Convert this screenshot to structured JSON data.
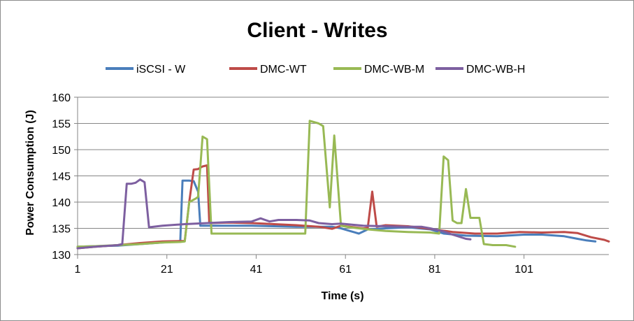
{
  "chart_data": {
    "type": "line",
    "title": "Client - Writes",
    "xlabel": "Time (s)",
    "ylabel": "Power Consumption (J)",
    "xlim": [
      1,
      120
    ],
    "ylim": [
      130,
      160
    ],
    "x_ticks": [
      1,
      21,
      41,
      61,
      81,
      101
    ],
    "y_ticks": [
      130,
      135,
      140,
      145,
      150,
      155,
      160
    ],
    "grid": "horizontal",
    "legend": "top",
    "series": [
      {
        "name": "iSCSI - W",
        "color": "#4a7ebb",
        "points": [
          [
            1,
            131.5
          ],
          [
            5,
            131.6
          ],
          [
            10,
            131.7
          ],
          [
            15,
            132.0
          ],
          [
            20,
            132.3
          ],
          [
            23,
            132.5
          ],
          [
            24,
            132.5
          ],
          [
            24.5,
            144.1
          ],
          [
            26,
            144.1
          ],
          [
            27,
            144.0
          ],
          [
            28,
            142.0
          ],
          [
            28.5,
            135.5
          ],
          [
            30,
            135.5
          ],
          [
            40,
            135.5
          ],
          [
            50,
            135.3
          ],
          [
            55,
            135.3
          ],
          [
            58,
            135.3
          ],
          [
            60,
            135.0
          ],
          [
            62,
            134.5
          ],
          [
            64,
            134.0
          ],
          [
            66,
            134.8
          ],
          [
            70,
            135.0
          ],
          [
            75,
            135.2
          ],
          [
            80,
            134.8
          ],
          [
            83,
            134.0
          ],
          [
            88,
            133.6
          ],
          [
            95,
            133.5
          ],
          [
            101,
            133.8
          ],
          [
            105,
            133.8
          ],
          [
            110,
            133.5
          ],
          [
            113,
            133.0
          ],
          [
            115,
            132.7
          ],
          [
            117,
            132.5
          ]
        ]
      },
      {
        "name": "DMC-WT",
        "color": "#be4b48",
        "points": [
          [
            1,
            131.2
          ],
          [
            5,
            131.5
          ],
          [
            10,
            131.8
          ],
          [
            15,
            132.2
          ],
          [
            20,
            132.5
          ],
          [
            25,
            132.6
          ],
          [
            26,
            140.0
          ],
          [
            27,
            146.2
          ],
          [
            28,
            146.3
          ],
          [
            29,
            146.8
          ],
          [
            30,
            147.0
          ],
          [
            30.5,
            136.0
          ],
          [
            35,
            136.1
          ],
          [
            40,
            136.0
          ],
          [
            45,
            135.8
          ],
          [
            50,
            135.6
          ],
          [
            55,
            135.3
          ],
          [
            58,
            134.9
          ],
          [
            60,
            135.5
          ],
          [
            63,
            135.2
          ],
          [
            65,
            135.0
          ],
          [
            66,
            135.1
          ],
          [
            67,
            142.0
          ],
          [
            68,
            135.3
          ],
          [
            70,
            135.6
          ],
          [
            75,
            135.4
          ],
          [
            80,
            134.9
          ],
          [
            85,
            134.3
          ],
          [
            90,
            134.0
          ],
          [
            95,
            134.0
          ],
          [
            100,
            134.3
          ],
          [
            105,
            134.2
          ],
          [
            110,
            134.3
          ],
          [
            113,
            134.1
          ],
          [
            116,
            133.3
          ],
          [
            119,
            132.8
          ],
          [
            120,
            132.5
          ]
        ]
      },
      {
        "name": "DMC-WB-M",
        "color": "#98b954",
        "points": [
          [
            1,
            131.5
          ],
          [
            5,
            131.6
          ],
          [
            10,
            131.8
          ],
          [
            15,
            132.0
          ],
          [
            20,
            132.3
          ],
          [
            24,
            132.4
          ],
          [
            25,
            132.5
          ],
          [
            26,
            140.0
          ],
          [
            27.5,
            140.7
          ],
          [
            28,
            141.0
          ],
          [
            29,
            152.5
          ],
          [
            30,
            152.0
          ],
          [
            31,
            134.0
          ],
          [
            35,
            134.0
          ],
          [
            40,
            134.0
          ],
          [
            45,
            134.0
          ],
          [
            50,
            134.0
          ],
          [
            52,
            134.0
          ],
          [
            53,
            155.5
          ],
          [
            55,
            155.0
          ],
          [
            56,
            154.5
          ],
          [
            57.5,
            139.0
          ],
          [
            58.5,
            152.7
          ],
          [
            60,
            135.5
          ],
          [
            62,
            135.2
          ],
          [
            64,
            135.0
          ],
          [
            66,
            134.8
          ],
          [
            70,
            134.5
          ],
          [
            75,
            134.3
          ],
          [
            80,
            134.2
          ],
          [
            82,
            134.0
          ],
          [
            83,
            148.7
          ],
          [
            84,
            148.0
          ],
          [
            85,
            136.5
          ],
          [
            86,
            136.0
          ],
          [
            87,
            136.0
          ],
          [
            88,
            142.5
          ],
          [
            89,
            137.0
          ],
          [
            91,
            137.0
          ],
          [
            92,
            132.0
          ],
          [
            94,
            131.8
          ],
          [
            97,
            131.8
          ],
          [
            99,
            131.5
          ]
        ]
      },
      {
        "name": "DMC-WB-H",
        "color": "#7d5fa0",
        "points": [
          [
            1,
            131.2
          ],
          [
            5,
            131.5
          ],
          [
            10,
            131.8
          ],
          [
            11,
            132.0
          ],
          [
            12,
            143.5
          ],
          [
            13,
            143.5
          ],
          [
            14,
            143.7
          ],
          [
            15,
            144.3
          ],
          [
            16,
            143.8
          ],
          [
            17,
            135.2
          ],
          [
            20,
            135.5
          ],
          [
            25,
            135.8
          ],
          [
            30,
            136.0
          ],
          [
            35,
            136.2
          ],
          [
            40,
            136.3
          ],
          [
            42,
            136.9
          ],
          [
            44,
            136.3
          ],
          [
            46,
            136.6
          ],
          [
            50,
            136.6
          ],
          [
            53,
            136.5
          ],
          [
            55,
            136.0
          ],
          [
            58,
            135.8
          ],
          [
            60,
            135.9
          ],
          [
            65,
            135.5
          ],
          [
            70,
            135.4
          ],
          [
            75,
            135.3
          ],
          [
            78,
            135.3
          ],
          [
            80,
            135.0
          ],
          [
            83,
            134.4
          ],
          [
            85,
            133.8
          ],
          [
            88,
            133.0
          ],
          [
            89,
            132.9
          ]
        ]
      }
    ]
  }
}
